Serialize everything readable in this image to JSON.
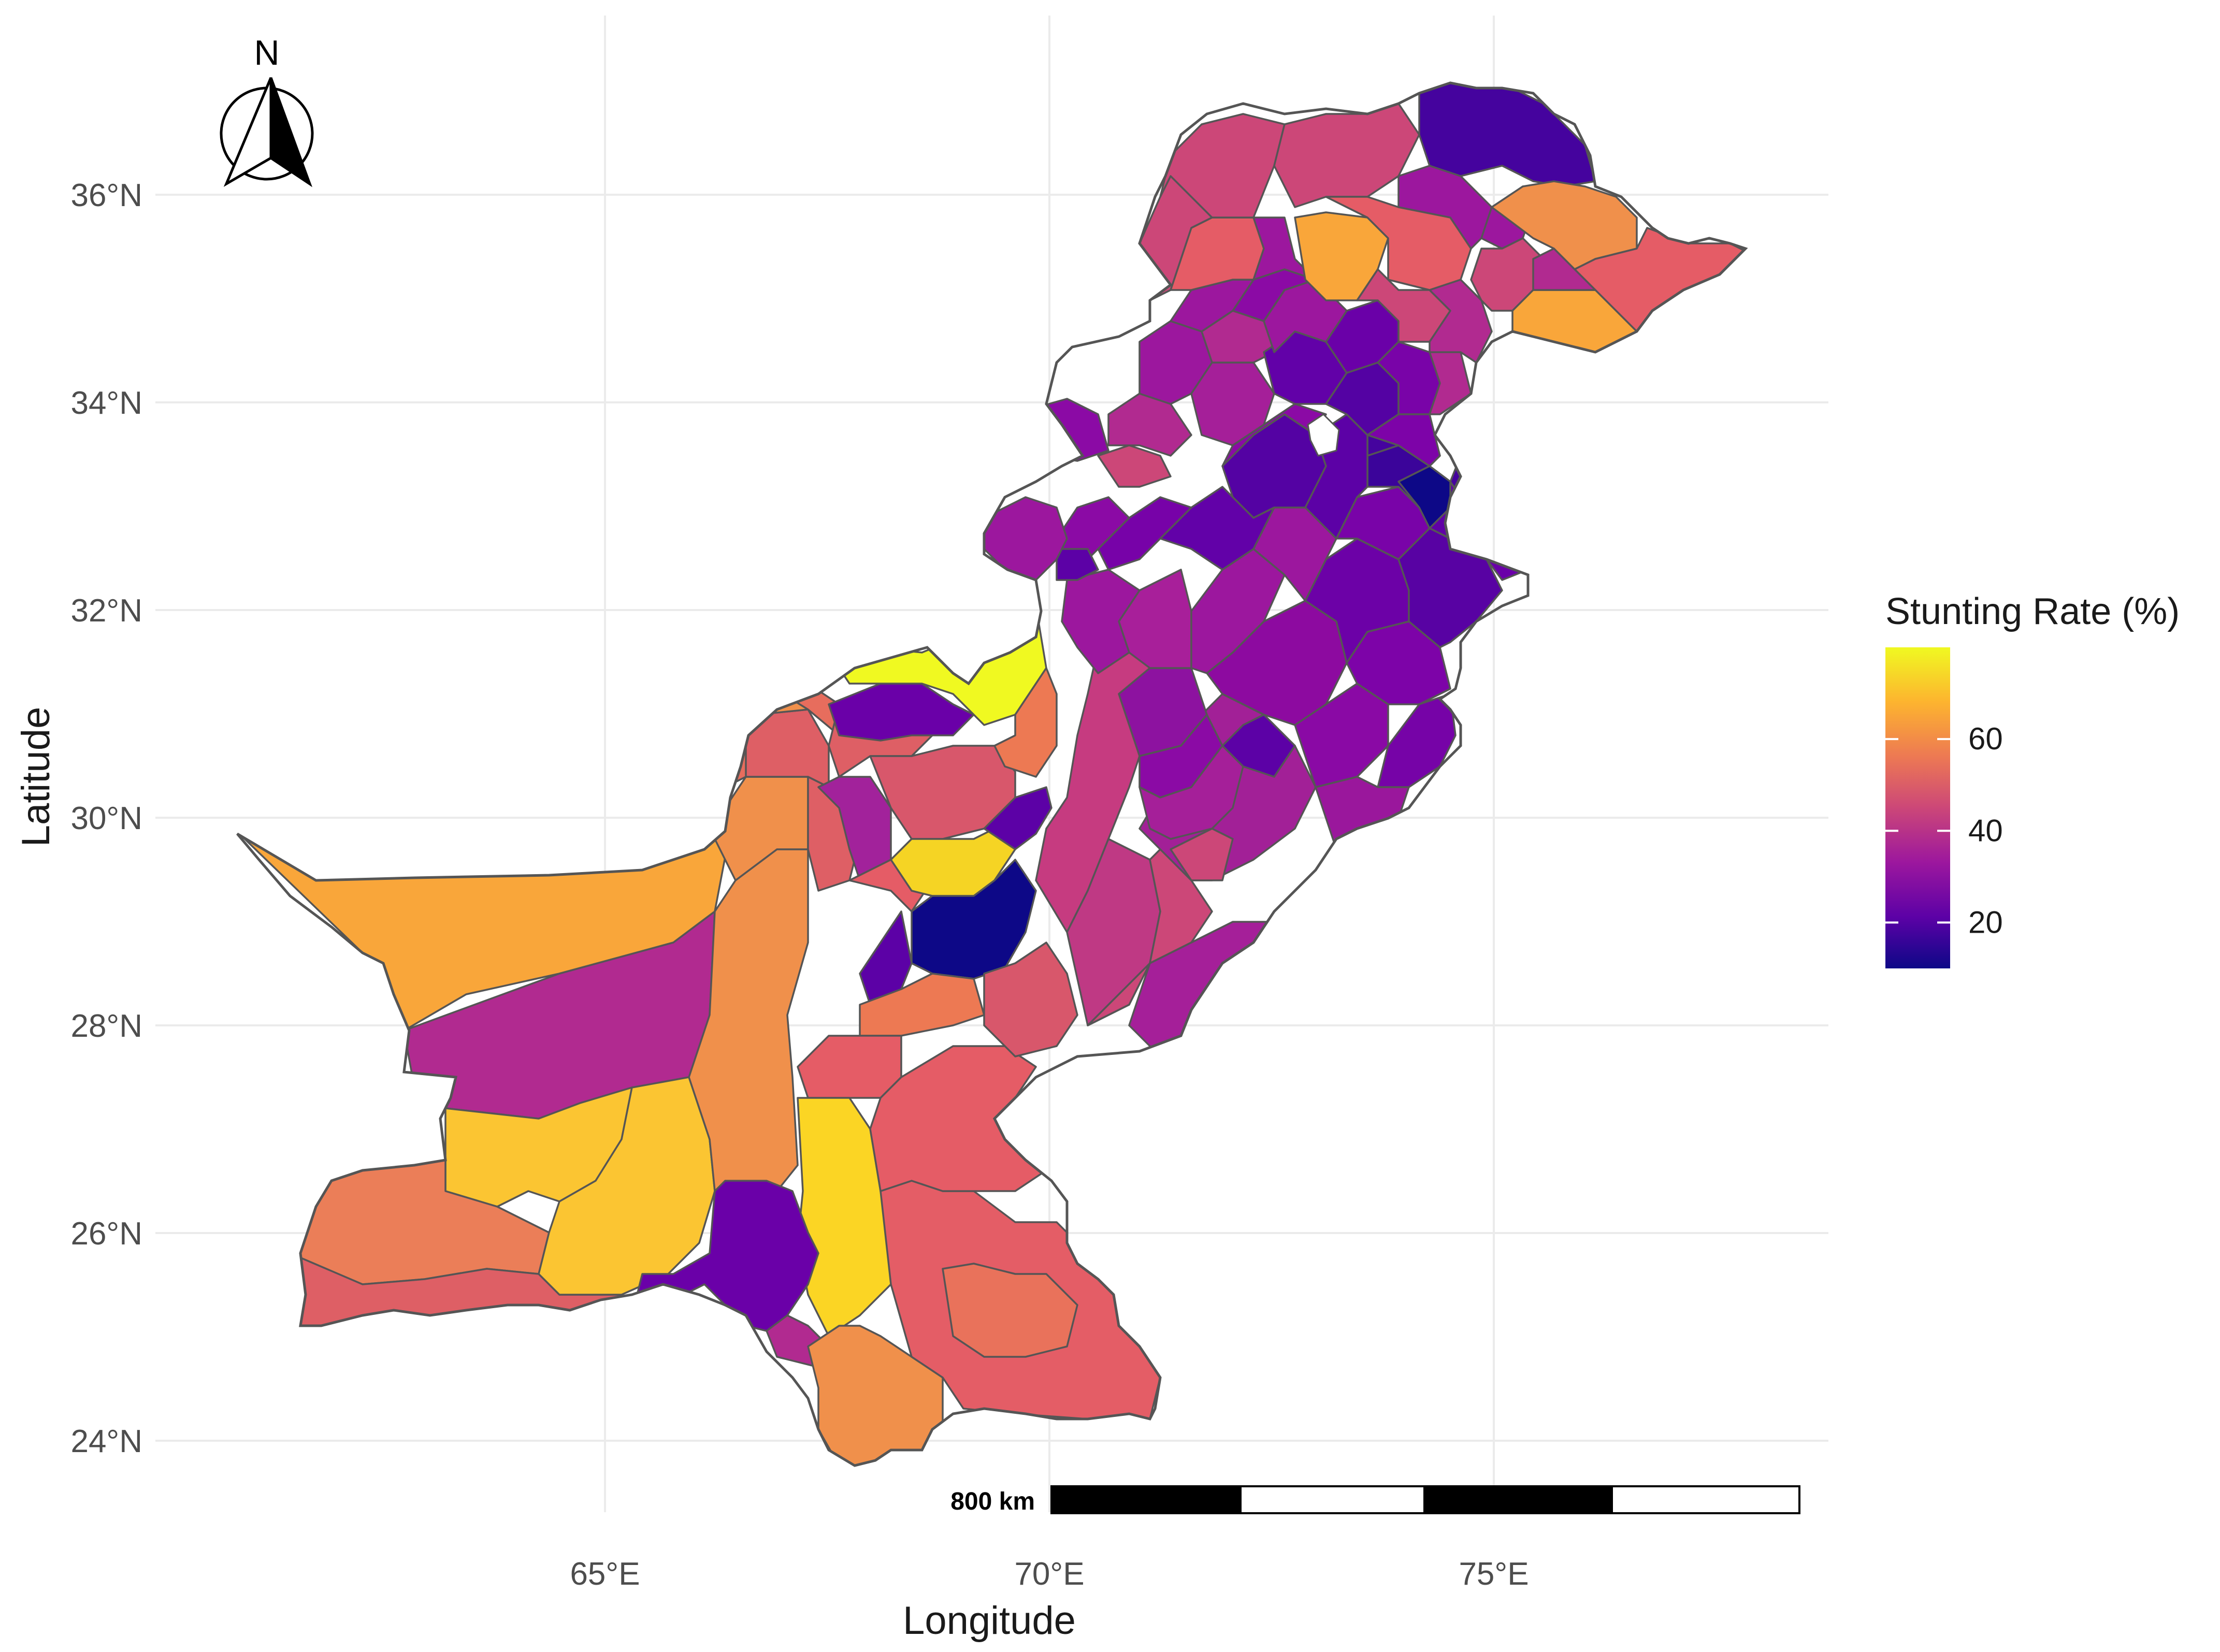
{
  "map": {
    "x_axis_title": "Longitude",
    "y_axis_title": "Latitude",
    "x_ticks": [
      "65°E",
      "70°E",
      "75°E"
    ],
    "y_ticks": [
      "24°N",
      "26°N",
      "28°N",
      "30°N",
      "32°N",
      "34°N",
      "36°N"
    ],
    "north_arrow_label": "N",
    "scale_bar_label": "800 km",
    "legend": {
      "title": "Stunting Rate (%)",
      "labels": [
        "60",
        "40",
        "20"
      ],
      "palette": [
        "#0d0887",
        "#5c01a6",
        "#9c179e",
        "#cc4778",
        "#ed7953",
        "#fdb42f",
        "#f0f921"
      ]
    }
  },
  "chart_data": {
    "type": "choropleth",
    "region": "Pakistan (districts)",
    "xlabel": "Longitude",
    "ylabel": "Latitude",
    "xlim": [
      60.5,
      78.5
    ],
    "ylim": [
      23.5,
      37.5
    ],
    "x_ticks": [
      65,
      70,
      75
    ],
    "y_ticks": [
      24,
      26,
      28,
      30,
      32,
      34,
      36
    ],
    "legend_title": "Stunting Rate (%)",
    "legend_range": [
      10,
      80
    ],
    "legend_ticks": [
      20,
      40,
      60
    ],
    "colormap": "plasma",
    "legend_position": "right",
    "grid": true
  }
}
